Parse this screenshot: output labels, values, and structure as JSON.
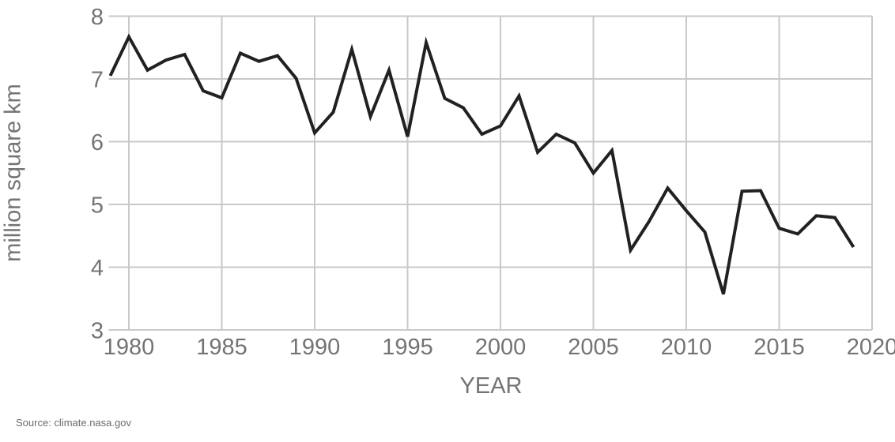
{
  "chart_data": {
    "type": "line",
    "title": "",
    "xlabel": "YEAR",
    "ylabel": "million square km",
    "x": [
      1979,
      1980,
      1981,
      1982,
      1983,
      1984,
      1985,
      1986,
      1987,
      1988,
      1989,
      1990,
      1991,
      1992,
      1993,
      1994,
      1995,
      1996,
      1997,
      1998,
      1999,
      2000,
      2001,
      2002,
      2003,
      2004,
      2005,
      2006,
      2007,
      2008,
      2009,
      2010,
      2011,
      2012,
      2013,
      2014,
      2015,
      2016,
      2017,
      2018,
      2019
    ],
    "values": [
      7.05,
      7.67,
      7.14,
      7.3,
      7.39,
      6.81,
      6.7,
      7.41,
      7.28,
      7.37,
      7.01,
      6.14,
      6.47,
      7.47,
      6.4,
      7.14,
      6.08,
      7.58,
      6.69,
      6.54,
      6.12,
      6.25,
      6.73,
      5.83,
      6.12,
      5.98,
      5.5,
      5.86,
      4.27,
      4.73,
      5.26,
      4.9,
      4.56,
      3.57,
      5.21,
      5.22,
      4.62,
      4.53,
      4.82,
      4.79,
      4.32
    ],
    "xlim": [
      1979,
      2020
    ],
    "ylim": [
      3,
      8
    ],
    "x_ticks": [
      1980,
      1985,
      1990,
      1995,
      2000,
      2005,
      2010,
      2015,
      2020
    ],
    "y_ticks": [
      3,
      4,
      5,
      6,
      7,
      8
    ],
    "grid": true,
    "legend": "none",
    "line_color": "#212121",
    "grid_color": "#c9c9c9",
    "label_color": "#747474"
  },
  "footer": {
    "source": "Source: climate.nasa.gov"
  }
}
